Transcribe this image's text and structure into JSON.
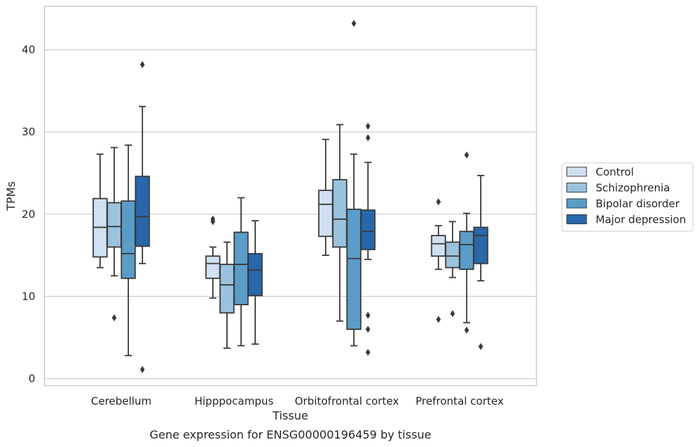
{
  "caption": "Gene expression for ENSG00000196459 by tissue",
  "chart_data": {
    "type": "box",
    "xlabel": "Tissue",
    "ylabel": "TPMs",
    "ylim": [
      -1,
      45
    ],
    "yticks": [
      0,
      10,
      20,
      30,
      40
    ],
    "grid": "horizontal",
    "legend_position": "right",
    "categories": [
      "Cerebellum",
      "Hipppocampus",
      "Orbitofrontal cortex",
      "Prefrontal cortex"
    ],
    "series": [
      {
        "name": "Control",
        "color": "#d0e1f2",
        "boxes": [
          {
            "whisker_low": 13.5,
            "q1": 14.8,
            "median": 18.4,
            "q3": 21.9,
            "whisker_high": 27.3,
            "outliers": []
          },
          {
            "whisker_low": 9.8,
            "q1": 12.2,
            "median": 14.0,
            "q3": 14.9,
            "whisker_high": 16.0,
            "outliers": [
              19.1,
              19.4
            ]
          },
          {
            "whisker_low": 15.0,
            "q1": 17.3,
            "median": 21.2,
            "q3": 22.9,
            "whisker_high": 29.1,
            "outliers": []
          },
          {
            "whisker_low": 13.3,
            "q1": 14.9,
            "median": 16.4,
            "q3": 17.4,
            "whisker_high": 18.6,
            "outliers": [
              7.2,
              21.5
            ]
          }
        ]
      },
      {
        "name": "Schizophrenia",
        "color": "#9ac3df",
        "boxes": [
          {
            "whisker_low": 12.5,
            "q1": 16.0,
            "median": 18.5,
            "q3": 21.4,
            "whisker_high": 28.1,
            "outliers": [
              7.4
            ]
          },
          {
            "whisker_low": 3.7,
            "q1": 8.0,
            "median": 11.4,
            "q3": 13.9,
            "whisker_high": 16.6,
            "outliers": []
          },
          {
            "whisker_low": 7.0,
            "q1": 16.0,
            "median": 19.4,
            "q3": 24.2,
            "whisker_high": 30.9,
            "outliers": []
          },
          {
            "whisker_low": 12.3,
            "q1": 13.5,
            "median": 14.9,
            "q3": 16.6,
            "whisker_high": 19.1,
            "outliers": [
              7.9
            ]
          }
        ]
      },
      {
        "name": "Bipolar disorder",
        "color": "#5a9dc9",
        "boxes": [
          {
            "whisker_low": 2.8,
            "q1": 12.2,
            "median": 15.2,
            "q3": 21.6,
            "whisker_high": 28.4,
            "outliers": []
          },
          {
            "whisker_low": 4.0,
            "q1": 9.0,
            "median": 13.9,
            "q3": 17.8,
            "whisker_high": 22.0,
            "outliers": []
          },
          {
            "whisker_low": 4.0,
            "q1": 6.0,
            "median": 14.6,
            "q3": 20.6,
            "whisker_high": 27.3,
            "outliers": [
              43.2
            ]
          },
          {
            "whisker_low": 6.8,
            "q1": 13.3,
            "median": 16.3,
            "q3": 17.9,
            "whisker_high": 20.1,
            "outliers": [
              5.9,
              27.2
            ]
          }
        ]
      },
      {
        "name": "Major depression",
        "color": "#2767aa",
        "boxes": [
          {
            "whisker_low": 14.0,
            "q1": 16.1,
            "median": 19.7,
            "q3": 24.6,
            "whisker_high": 33.1,
            "outliers": [
              1.1,
              38.2
            ]
          },
          {
            "whisker_low": 4.2,
            "q1": 10.1,
            "median": 13.2,
            "q3": 15.2,
            "whisker_high": 19.2,
            "outliers": []
          },
          {
            "whisker_low": 14.5,
            "q1": 15.7,
            "median": 17.9,
            "q3": 20.5,
            "whisker_high": 26.3,
            "outliers": [
              3.2,
              6.0,
              7.7,
              29.3,
              30.7
            ]
          },
          {
            "whisker_low": 11.9,
            "q1": 14.0,
            "median": 17.4,
            "q3": 18.4,
            "whisker_high": 24.7,
            "outliers": [
              3.9
            ]
          }
        ]
      }
    ]
  }
}
